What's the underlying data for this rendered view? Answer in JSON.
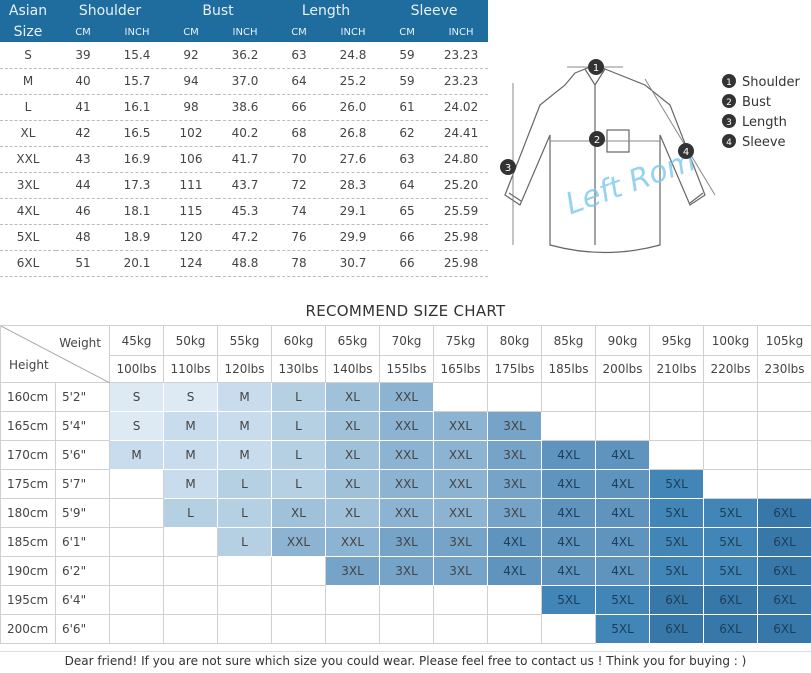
{
  "measure_table": {
    "header": {
      "size_label_1": "Asian",
      "size_label_2": "Size",
      "groups": [
        "Shoulder",
        "Bust",
        "Length",
        "Sleeve"
      ],
      "unit_cm": "CM",
      "unit_inch": "INCH"
    },
    "rows": [
      [
        "S",
        "39",
        "15.4",
        "92",
        "36.2",
        "63",
        "24.8",
        "59",
        "23.23"
      ],
      [
        "M",
        "40",
        "15.7",
        "94",
        "37.0",
        "64",
        "25.2",
        "59",
        "23.23"
      ],
      [
        "L",
        "41",
        "16.1",
        "98",
        "38.6",
        "66",
        "26.0",
        "61",
        "24.02"
      ],
      [
        "XL",
        "42",
        "16.5",
        "102",
        "40.2",
        "68",
        "26.8",
        "62",
        "24.41"
      ],
      [
        "XXL",
        "43",
        "16.9",
        "106",
        "41.7",
        "70",
        "27.6",
        "63",
        "24.80"
      ],
      [
        "3XL",
        "44",
        "17.3",
        "111",
        "43.7",
        "72",
        "28.3",
        "64",
        "25.20"
      ],
      [
        "4XL",
        "46",
        "18.1",
        "115",
        "45.3",
        "74",
        "29.1",
        "65",
        "25.59"
      ],
      [
        "5XL",
        "48",
        "18.9",
        "120",
        "47.2",
        "76",
        "29.9",
        "66",
        "25.98"
      ],
      [
        "6XL",
        "51",
        "20.1",
        "124",
        "48.8",
        "78",
        "30.7",
        "66",
        "25.98"
      ]
    ]
  },
  "diagram": {
    "watermark": "Left Rom",
    "legend": [
      {
        "num": "1",
        "label": "Shoulder"
      },
      {
        "num": "2",
        "label": "Bust"
      },
      {
        "num": "3",
        "label": "Length"
      },
      {
        "num": "4",
        "label": "Sleeve"
      }
    ]
  },
  "recommend": {
    "title": "RECOMMEND SIZE CHART",
    "weight_label": "Weight",
    "height_label": "Height",
    "kg": [
      "45kg",
      "50kg",
      "55kg",
      "60kg",
      "65kg",
      "70kg",
      "75kg",
      "80kg",
      "85kg",
      "90kg",
      "95kg",
      "100kg",
      "105kg"
    ],
    "lbs": [
      "100lbs",
      "110lbs",
      "120lbs",
      "130lbs",
      "140lbs",
      "155lbs",
      "165lbs",
      "175lbs",
      "185lbs",
      "200lbs",
      "210lbs",
      "220lbs",
      "230lbs"
    ],
    "rows": [
      {
        "cm": "160cm",
        "ft": "5'2\"",
        "sizes": [
          "S",
          "S",
          "M",
          "L",
          "XL",
          "XXL",
          "",
          "",
          "",
          "",
          "",
          "",
          ""
        ]
      },
      {
        "cm": "165cm",
        "ft": "5'4\"",
        "sizes": [
          "S",
          "M",
          "M",
          "L",
          "XL",
          "XXL",
          "XXL",
          "3XL",
          "",
          "",
          "",
          "",
          ""
        ]
      },
      {
        "cm": "170cm",
        "ft": "5'6\"",
        "sizes": [
          "M",
          "M",
          "M",
          "L",
          "XL",
          "XXL",
          "XXL",
          "3XL",
          "4XL",
          "4XL",
          "",
          "",
          ""
        ]
      },
      {
        "cm": "175cm",
        "ft": "5'7\"",
        "sizes": [
          "",
          "M",
          "L",
          "L",
          "XL",
          "XXL",
          "XXL",
          "3XL",
          "4XL",
          "4XL",
          "5XL",
          "",
          ""
        ]
      },
      {
        "cm": "180cm",
        "ft": "5'9\"",
        "sizes": [
          "",
          "L",
          "L",
          "XL",
          "XL",
          "XXL",
          "XXL",
          "3XL",
          "4XL",
          "4XL",
          "5XL",
          "5XL",
          "6XL"
        ]
      },
      {
        "cm": "185cm",
        "ft": "6'1\"",
        "sizes": [
          "",
          "",
          "L",
          "XXL",
          "XXL",
          "3XL",
          "3XL",
          "4XL",
          "4XL",
          "4XL",
          "5XL",
          "5XL",
          "6XL"
        ]
      },
      {
        "cm": "190cm",
        "ft": "6'2\"",
        "sizes": [
          "",
          "",
          "",
          "",
          "3XL",
          "3XL",
          "3XL",
          "4XL",
          "4XL",
          "4XL",
          "5XL",
          "5XL",
          "6XL"
        ]
      },
      {
        "cm": "195cm",
        "ft": "6'4\"",
        "sizes": [
          "",
          "",
          "",
          "",
          "",
          "",
          "",
          "",
          "5XL",
          "5XL",
          "6XL",
          "6XL",
          "6XL"
        ]
      },
      {
        "cm": "200cm",
        "ft": "6'6\"",
        "sizes": [
          "",
          "",
          "",
          "",
          "",
          "",
          "",
          "",
          "",
          "5XL",
          "6XL",
          "6XL",
          "6XL"
        ]
      }
    ],
    "size_colors": {
      "S": "#dde9f3",
      "M": "#c9dced",
      "L": "#b5cfe3",
      "XL": "#a0c1da",
      "XXL": "#8cb3d1",
      "3XL": "#75a4c8",
      "4XL": "#5e94be",
      "5XL": "#4285b7",
      "6XL": "#3778a8"
    }
  },
  "footer": "Dear friend! If you are not sure which size you could wear. Please feel free to contact us ! Think you for buying  : )",
  "colors": {
    "header_bg": "#1f6c9e"
  }
}
